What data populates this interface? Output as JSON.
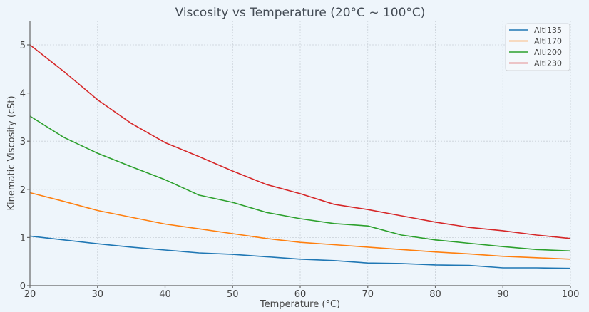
{
  "chart_data": {
    "type": "line",
    "title": "Viscosity vs Temperature (20°C ~ 100°C)",
    "xlabel": "Temperature (°C)",
    "ylabel": "Kinematic Viscosity (cSt)",
    "xlim": [
      20,
      100
    ],
    "ylim": [
      0,
      5.5
    ],
    "xticks": [
      20,
      30,
      40,
      50,
      60,
      70,
      80,
      90,
      100
    ],
    "yticks": [
      0,
      1,
      2,
      3,
      4,
      5
    ],
    "grid": true,
    "legend_position": "top-right",
    "x": [
      20,
      25,
      30,
      35,
      40,
      45,
      50,
      55,
      60,
      65,
      70,
      75,
      80,
      85,
      90,
      95,
      100
    ],
    "series": [
      {
        "name": "Alti135",
        "color": "#1f77b4",
        "values": [
          1.03,
          0.95,
          0.87,
          0.8,
          0.74,
          0.68,
          0.65,
          0.6,
          0.55,
          0.52,
          0.47,
          0.46,
          0.43,
          0.42,
          0.37,
          0.37,
          0.36
        ]
      },
      {
        "name": "Alti170",
        "color": "#ff7f0e",
        "values": [
          1.93,
          1.75,
          1.56,
          1.42,
          1.28,
          1.18,
          1.08,
          0.98,
          0.9,
          0.85,
          0.8,
          0.75,
          0.7,
          0.66,
          0.61,
          0.58,
          0.55
        ]
      },
      {
        "name": "Alti200",
        "color": "#2ca02c",
        "values": [
          3.52,
          3.08,
          2.75,
          2.47,
          2.2,
          1.88,
          1.73,
          1.52,
          1.39,
          1.29,
          1.24,
          1.05,
          0.95,
          0.88,
          0.81,
          0.75,
          0.72
        ]
      },
      {
        "name": "Alti230",
        "color": "#d62728",
        "values": [
          5.0,
          4.45,
          3.86,
          3.37,
          2.97,
          2.68,
          2.38,
          2.1,
          1.91,
          1.69,
          1.58,
          1.45,
          1.32,
          1.21,
          1.14,
          1.05,
          0.98
        ]
      }
    ]
  }
}
